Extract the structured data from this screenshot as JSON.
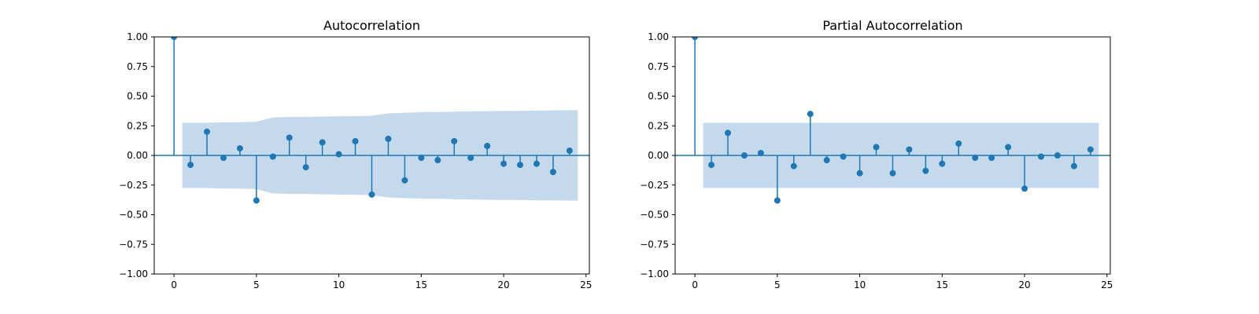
{
  "chart_data": [
    {
      "type": "stem",
      "title": "Autocorrelation",
      "xlabel": "",
      "ylabel": "",
      "xlim": [
        -1.2,
        25.2
      ],
      "ylim": [
        -1.0,
        1.0
      ],
      "x_ticks": [
        0,
        5,
        10,
        15,
        20,
        25
      ],
      "y_ticks": [
        -1.0,
        -0.75,
        -0.5,
        -0.25,
        0.0,
        0.25,
        0.5,
        0.75,
        1.0
      ],
      "x_tick_labels": [
        "0",
        "5",
        "10",
        "15",
        "20",
        "25"
      ],
      "y_tick_labels": [
        "−1.00",
        "−0.75",
        "−0.50",
        "−0.25",
        "0.00",
        "0.25",
        "0.50",
        "0.75",
        "1.00"
      ],
      "lags": [
        0,
        1,
        2,
        3,
        4,
        5,
        6,
        7,
        8,
        9,
        10,
        11,
        12,
        13,
        14,
        15,
        16,
        17,
        18,
        19,
        20,
        21,
        22,
        23,
        24
      ],
      "values": [
        1.0,
        -0.08,
        0.2,
        -0.02,
        0.06,
        -0.38,
        -0.01,
        0.15,
        -0.1,
        0.11,
        0.01,
        0.12,
        -0.33,
        0.14,
        -0.21,
        -0.02,
        -0.04,
        0.12,
        -0.02,
        0.08,
        -0.07,
        -0.08,
        -0.07,
        -0.14,
        0.04
      ],
      "confidence_band": {
        "x": [
          0.5,
          1,
          2,
          3,
          4,
          5,
          6,
          7,
          8,
          9,
          10,
          11,
          12,
          13,
          14,
          15,
          16,
          17,
          18,
          19,
          20,
          21,
          22,
          23,
          24,
          24.5
        ],
        "upper": [
          0.275,
          0.275,
          0.275,
          0.28,
          0.28,
          0.285,
          0.32,
          0.325,
          0.325,
          0.328,
          0.33,
          0.332,
          0.335,
          0.355,
          0.36,
          0.365,
          0.365,
          0.37,
          0.372,
          0.374,
          0.375,
          0.376,
          0.378,
          0.38,
          0.382,
          0.382
        ]
      },
      "color": "#1f77b4",
      "band_color": "#c5d9ec"
    },
    {
      "type": "stem",
      "title": "Partial Autocorrelation",
      "xlabel": "",
      "ylabel": "",
      "xlim": [
        -1.2,
        25.2
      ],
      "ylim": [
        -1.0,
        1.0
      ],
      "x_ticks": [
        0,
        5,
        10,
        15,
        20,
        25
      ],
      "y_ticks": [
        -1.0,
        -0.75,
        -0.5,
        -0.25,
        0.0,
        0.25,
        0.5,
        0.75,
        1.0
      ],
      "x_tick_labels": [
        "0",
        "5",
        "10",
        "15",
        "20",
        "25"
      ],
      "y_tick_labels": [
        "−1.00",
        "−0.75",
        "−0.50",
        "−0.25",
        "0.00",
        "0.25",
        "0.50",
        "0.75",
        "1.00"
      ],
      "lags": [
        0,
        1,
        2,
        3,
        4,
        5,
        6,
        7,
        8,
        9,
        10,
        11,
        12,
        13,
        14,
        15,
        16,
        17,
        18,
        19,
        20,
        21,
        22,
        23,
        24
      ],
      "values": [
        1.0,
        -0.08,
        0.19,
        0.0,
        0.02,
        -0.38,
        -0.09,
        0.35,
        -0.04,
        -0.01,
        -0.15,
        0.07,
        -0.15,
        0.05,
        -0.13,
        -0.07,
        0.1,
        -0.02,
        -0.02,
        0.07,
        -0.28,
        -0.01,
        0.0,
        -0.09,
        0.05
      ],
      "confidence_band": {
        "x": [
          0.5,
          24.5
        ],
        "upper": [
          0.275,
          0.275
        ]
      },
      "color": "#1f77b4",
      "band_color": "#c5d9ec"
    }
  ]
}
